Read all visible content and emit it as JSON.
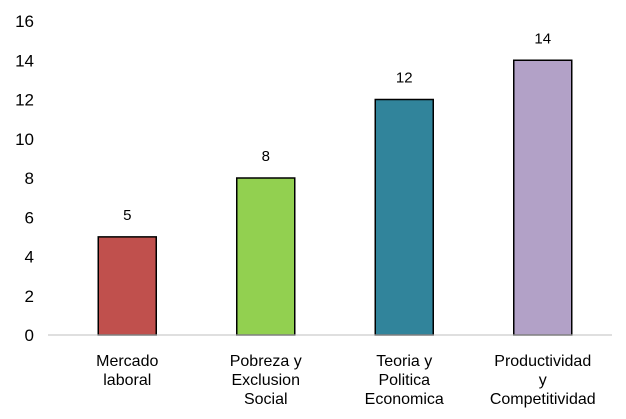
{
  "chart_data": {
    "type": "bar",
    "title": "",
    "xlabel": "",
    "ylabel": "",
    "categories": [
      [
        "Mercado",
        "laboral"
      ],
      [
        "Pobreza y",
        "Exclusion",
        "Social"
      ],
      [
        "Teoria y",
        "Politica",
        "Economica"
      ],
      [
        "Productividad",
        "y",
        "Competitividad"
      ]
    ],
    "values": [
      5,
      8,
      12,
      14
    ],
    "colors": [
      "#c0504d",
      "#92d050",
      "#31849b",
      "#b2a1c7"
    ],
    "bar_outline": "#000000",
    "ylim": [
      0,
      16
    ],
    "yticks": [
      0,
      2,
      4,
      6,
      8,
      10,
      12,
      14,
      16
    ],
    "grid": false,
    "legend": "none",
    "data_labels": true
  }
}
